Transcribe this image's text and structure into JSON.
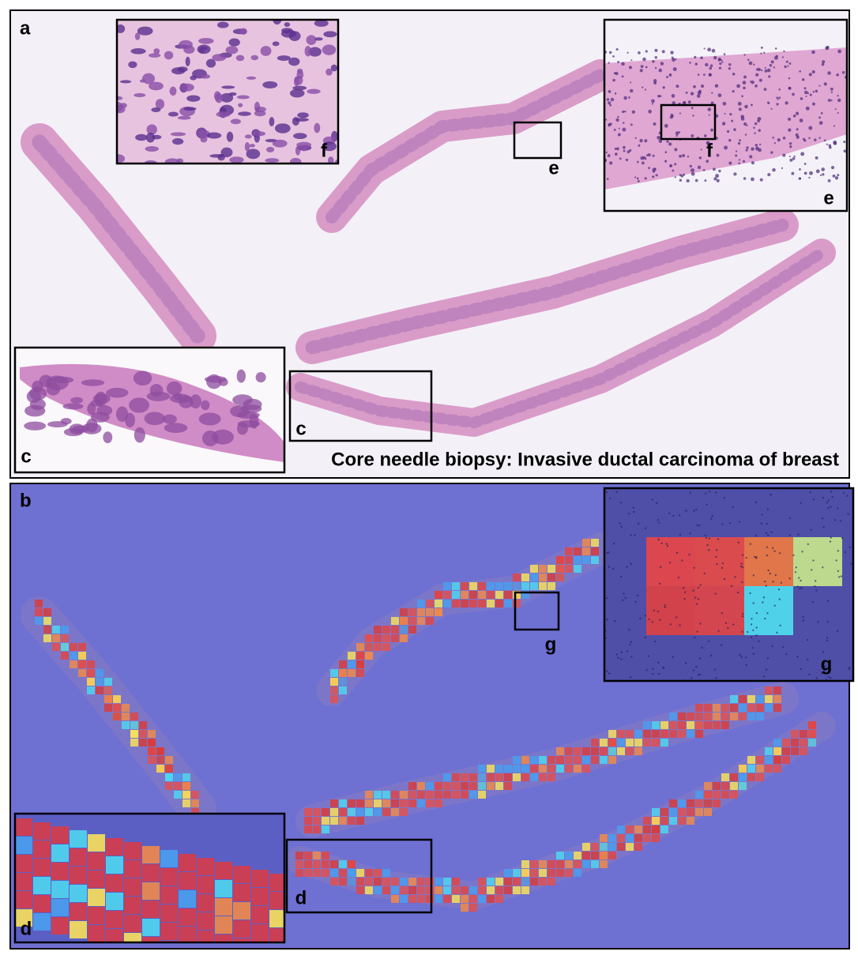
{
  "panel_a": {
    "label": "a",
    "caption": "Core needle biopsy: Invasive ductal carcinoma of breast",
    "box_e_label": "e",
    "box_c_label": "c",
    "inset_f_label": "f",
    "inset_e_label": "e",
    "inset_e_box_label": "f",
    "inset_c_label": "c"
  },
  "panel_b": {
    "label": "b",
    "box_g_label": "g",
    "box_d_label": "d",
    "inset_g_label": "g",
    "inset_d_label": "d"
  }
}
